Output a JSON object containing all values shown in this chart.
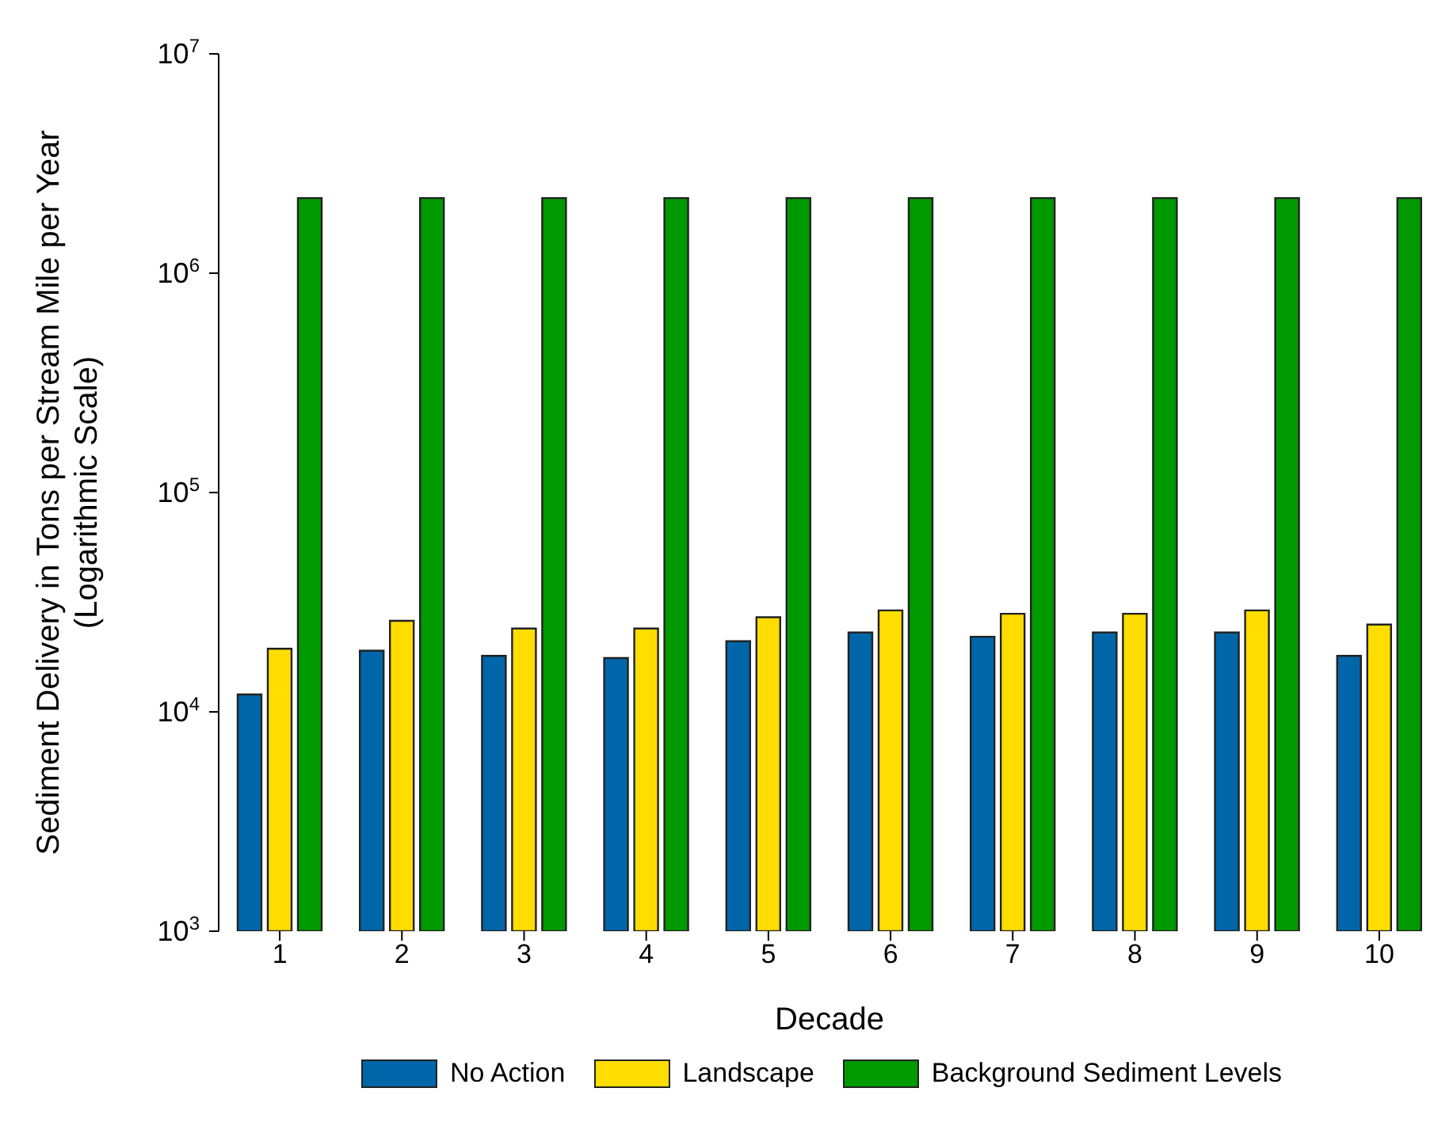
{
  "chart_data": {
    "type": "bar",
    "xlabel": "Decade",
    "ylabel": "Sediment Delivery in Tons per Stream Mile per Year\n(Logarithmic Scale)",
    "categories": [
      "1",
      "2",
      "3",
      "4",
      "5",
      "6",
      "7",
      "8",
      "9",
      "10"
    ],
    "series": [
      {
        "name": "No Action",
        "color": "#0066aa",
        "values": [
          12000,
          19000,
          18000,
          17600,
          21000,
          23000,
          22000,
          23000,
          23000,
          18000
        ]
      },
      {
        "name": "Landscape",
        "color": "#ffdd00",
        "values": [
          19400,
          26000,
          24000,
          24000,
          27000,
          29000,
          28000,
          28000,
          29000,
          25000
        ]
      },
      {
        "name": "Background Sediment Levels",
        "color": "#009900",
        "values": [
          2200000,
          2200000,
          2200000,
          2200000,
          2200000,
          2200000,
          2200000,
          2200000,
          2200000,
          2200000
        ]
      }
    ],
    "log": "y",
    "ylim": [
      1000,
      10000000
    ],
    "yticks": [
      {
        "value": 1000,
        "label": "10$^{3}$"
      },
      {
        "value": 10000,
        "label": "10$^{4}$"
      },
      {
        "value": 100000,
        "label": "10$^{5}$"
      },
      {
        "value": 1000000,
        "label": "10$^{6}$"
      },
      {
        "value": 10000000,
        "label": "10$^{7}$"
      }
    ],
    "grid": false,
    "legend": "bottom"
  }
}
